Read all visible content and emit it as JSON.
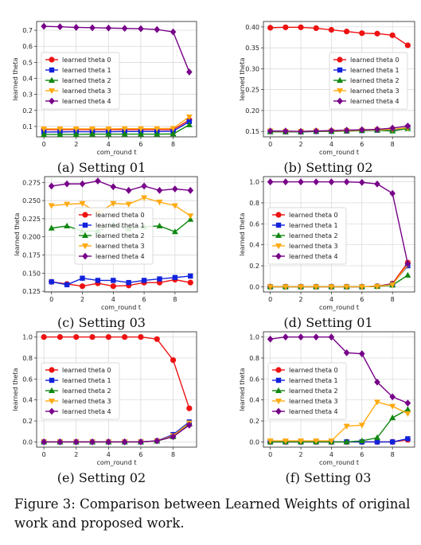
{
  "figure_caption": "Figure 3: Comparison between Learned Weights of original work and proposed work.",
  "colors": {
    "theta0": "#ee1111",
    "theta1": "#1122dd",
    "theta2": "#118811",
    "theta3": "#ffaa11",
    "theta4": "#770088"
  },
  "chart_data": [
    {
      "type": "line",
      "caption": "(a) Setting 01",
      "xlabel": "com_round t",
      "ylabel": "learned theta",
      "x": [
        0,
        1,
        2,
        3,
        4,
        5,
        6,
        7,
        8,
        9
      ],
      "xticks": [
        0,
        2,
        4,
        6,
        8
      ],
      "xlim": [
        -0.45,
        9.45
      ],
      "ylim": [
        0.035,
        0.755
      ],
      "yticks": [
        0.1,
        0.2,
        0.3,
        0.4,
        0.5,
        0.6,
        0.7
      ],
      "ytick_labels": [
        "0.1",
        "0.2",
        "0.3",
        "0.4",
        "0.5",
        "0.6",
        "0.7"
      ],
      "legend_position": "center-left",
      "grid": true,
      "series": [
        {
          "name": "learned theta 0",
          "values": [
            0.08,
            0.08,
            0.08,
            0.08,
            0.08,
            0.08,
            0.08,
            0.08,
            0.08,
            0.14
          ]
        },
        {
          "name": "learned theta 1",
          "values": [
            0.065,
            0.066,
            0.067,
            0.067,
            0.067,
            0.068,
            0.068,
            0.068,
            0.07,
            0.13
          ]
        },
        {
          "name": "learned theta 2",
          "values": [
            0.05,
            0.05,
            0.05,
            0.052,
            0.052,
            0.052,
            0.052,
            0.052,
            0.053,
            0.11
          ]
        },
        {
          "name": "learned theta 3",
          "values": [
            0.085,
            0.085,
            0.085,
            0.085,
            0.085,
            0.086,
            0.086,
            0.086,
            0.088,
            0.16
          ]
        },
        {
          "name": "learned theta 4",
          "values": [
            0.725,
            0.722,
            0.718,
            0.716,
            0.714,
            0.712,
            0.71,
            0.705,
            0.69,
            0.44
          ]
        }
      ]
    },
    {
      "type": "line",
      "caption": "(b) Setting 02",
      "xlabel": "com_round t",
      "ylabel": "learned theta",
      "x": [
        0,
        1,
        2,
        3,
        4,
        5,
        6,
        7,
        8,
        9
      ],
      "xticks": [
        0,
        2,
        4,
        6,
        8
      ],
      "xlim": [
        -0.45,
        9.45
      ],
      "ylim": [
        0.137,
        0.413
      ],
      "yticks": [
        0.15,
        0.2,
        0.25,
        0.3,
        0.35,
        0.4
      ],
      "ytick_labels": [
        "0.15",
        "0.20",
        "0.25",
        "0.30",
        "0.35",
        "0.40"
      ],
      "legend_position": "center-right",
      "grid": true,
      "series": [
        {
          "name": "learned theta 0",
          "values": [
            0.398,
            0.399,
            0.399,
            0.397,
            0.393,
            0.389,
            0.385,
            0.384,
            0.38,
            0.356
          ]
        },
        {
          "name": "learned theta 1",
          "values": [
            0.15,
            0.149,
            0.149,
            0.15,
            0.15,
            0.151,
            0.152,
            0.153,
            0.153,
            0.16
          ]
        },
        {
          "name": "learned theta 2",
          "values": [
            0.149,
            0.149,
            0.149,
            0.15,
            0.15,
            0.151,
            0.152,
            0.153,
            0.151,
            0.157
          ]
        },
        {
          "name": "learned theta 3",
          "values": [
            0.151,
            0.15,
            0.15,
            0.151,
            0.151,
            0.152,
            0.153,
            0.154,
            0.155,
            0.159
          ]
        },
        {
          "name": "learned theta 4",
          "values": [
            0.151,
            0.151,
            0.15,
            0.151,
            0.152,
            0.153,
            0.154,
            0.155,
            0.158,
            0.163
          ]
        }
      ]
    },
    {
      "type": "line",
      "caption": "(c) Setting 03",
      "xlabel": "com_round t",
      "ylabel": "learned theta",
      "x": [
        0,
        1,
        2,
        3,
        4,
        5,
        6,
        7,
        8,
        9
      ],
      "xticks": [
        0,
        2,
        4,
        6,
        8
      ],
      "xlim": [
        -0.45,
        9.45
      ],
      "ylim": [
        0.124,
        0.283
      ],
      "yticks": [
        0.125,
        0.15,
        0.175,
        0.2,
        0.225,
        0.25,
        0.275
      ],
      "ytick_labels": [
        "0.125",
        "0.150",
        "0.175",
        "0.200",
        "0.225",
        "0.250",
        "0.275"
      ],
      "legend_position": "center",
      "grid": true,
      "series": [
        {
          "name": "learned theta 0",
          "values": [
            0.138,
            0.135,
            0.132,
            0.136,
            0.132,
            0.133,
            0.137,
            0.137,
            0.141,
            0.137
          ]
        },
        {
          "name": "learned theta 1",
          "values": [
            0.138,
            0.134,
            0.143,
            0.14,
            0.14,
            0.137,
            0.14,
            0.142,
            0.144,
            0.146
          ]
        },
        {
          "name": "learned theta 2",
          "values": [
            0.212,
            0.215,
            0.208,
            0.208,
            0.217,
            0.211,
            0.214,
            0.215,
            0.207,
            0.224
          ]
        },
        {
          "name": "learned theta 3",
          "values": [
            0.243,
            0.245,
            0.246,
            0.233,
            0.246,
            0.245,
            0.254,
            0.248,
            0.243,
            0.229
          ]
        },
        {
          "name": "learned theta 4",
          "values": [
            0.27,
            0.273,
            0.273,
            0.277,
            0.269,
            0.264,
            0.27,
            0.264,
            0.266,
            0.264
          ]
        }
      ]
    },
    {
      "type": "line",
      "caption": "(d) Setting 01",
      "xlabel": "com_round t",
      "ylabel": "learned theta",
      "x": [
        0,
        1,
        2,
        3,
        4,
        5,
        6,
        7,
        8,
        9
      ],
      "xticks": [
        0,
        2,
        4,
        6,
        8
      ],
      "xlim": [
        -0.45,
        9.45
      ],
      "ylim": [
        -0.05,
        1.05
      ],
      "yticks": [
        0,
        0.2,
        0.4,
        0.6,
        0.8,
        1.0
      ],
      "ytick_labels": [
        "0.0",
        "0.2",
        "0.4",
        "0.6",
        "0.8",
        "1.0"
      ],
      "legend_position": "center-left",
      "grid": true,
      "series": [
        {
          "name": "learned theta 0",
          "values": [
            0,
            0,
            0,
            0,
            0,
            0,
            0,
            0.005,
            0.03,
            0.23
          ]
        },
        {
          "name": "learned theta 1",
          "values": [
            0,
            0,
            0,
            0,
            0,
            0,
            0,
            0.004,
            0.025,
            0.2
          ]
        },
        {
          "name": "learned theta 2",
          "values": [
            0,
            0,
            0,
            0,
            0,
            0,
            0,
            0.003,
            0.015,
            0.11
          ]
        },
        {
          "name": "learned theta 3",
          "values": [
            0,
            0,
            0,
            0,
            0,
            0,
            0,
            0.004,
            0.02,
            0.21
          ]
        },
        {
          "name": "learned theta 4",
          "values": [
            1,
            1,
            1,
            1,
            1,
            1,
            0.995,
            0.98,
            0.89,
            0.22
          ]
        }
      ]
    },
    {
      "type": "line",
      "caption": "(e) Setting 02",
      "xlabel": "com_round t",
      "ylabel": "learned theta",
      "x": [
        0,
        1,
        2,
        3,
        4,
        5,
        6,
        7,
        8,
        9
      ],
      "xticks": [
        0,
        2,
        4,
        6,
        8
      ],
      "xlim": [
        -0.45,
        9.45
      ],
      "ylim": [
        -0.05,
        1.05
      ],
      "yticks": [
        0,
        0.2,
        0.4,
        0.6,
        0.8,
        1.0
      ],
      "ytick_labels": [
        "0.0",
        "0.2",
        "0.4",
        "0.6",
        "0.8",
        "1.0"
      ],
      "legend_position": "center-left",
      "grid": true,
      "series": [
        {
          "name": "learned theta 0",
          "values": [
            1,
            1,
            1,
            1,
            1,
            1,
            1,
            0.98,
            0.78,
            0.32
          ]
        },
        {
          "name": "learned theta 1",
          "values": [
            0,
            0,
            0,
            0,
            0,
            0,
            0,
            0.01,
            0.07,
            0.19
          ]
        },
        {
          "name": "learned theta 2",
          "values": [
            0,
            0,
            0,
            0,
            0,
            0,
            0,
            0.008,
            0.05,
            0.17
          ]
        },
        {
          "name": "learned theta 3",
          "values": [
            0,
            0,
            0,
            0,
            0,
            0,
            0,
            0.009,
            0.06,
            0.18
          ]
        },
        {
          "name": "learned theta 4",
          "values": [
            0,
            0,
            0,
            0,
            0,
            0,
            0,
            0.01,
            0.05,
            0.16
          ]
        }
      ]
    },
    {
      "type": "line",
      "caption": "(f) Setting 03",
      "xlabel": "com_round t",
      "ylabel": "learned theta",
      "x": [
        0,
        1,
        2,
        3,
        4,
        5,
        6,
        7,
        8,
        9
      ],
      "xticks": [
        0,
        2,
        4,
        6,
        8
      ],
      "xlim": [
        -0.45,
        9.45
      ],
      "ylim": [
        -0.05,
        1.05
      ],
      "yticks": [
        0,
        0.2,
        0.4,
        0.6,
        0.8,
        1.0
      ],
      "ytick_labels": [
        "0.0",
        "0.2",
        "0.4",
        "0.6",
        "0.8",
        "1.0"
      ],
      "legend_position": "center-left",
      "grid": true,
      "series": [
        {
          "name": "learned theta 0",
          "values": [
            0,
            0,
            0,
            0,
            0,
            0,
            0,
            0,
            0,
            0.02
          ]
        },
        {
          "name": "learned theta 1",
          "values": [
            0,
            0,
            0,
            0,
            0,
            0,
            0,
            0,
            0,
            0.03
          ]
        },
        {
          "name": "learned theta 2",
          "values": [
            0,
            0,
            0,
            0,
            0,
            0,
            0.01,
            0.04,
            0.23,
            0.31
          ]
        },
        {
          "name": "learned theta 3",
          "values": [
            0.01,
            0.01,
            0.01,
            0.01,
            0.01,
            0.15,
            0.16,
            0.38,
            0.34,
            0.27
          ]
        },
        {
          "name": "learned theta 4",
          "values": [
            0.98,
            1,
            1,
            1,
            1,
            0.85,
            0.84,
            0.57,
            0.43,
            0.37
          ]
        }
      ]
    }
  ]
}
